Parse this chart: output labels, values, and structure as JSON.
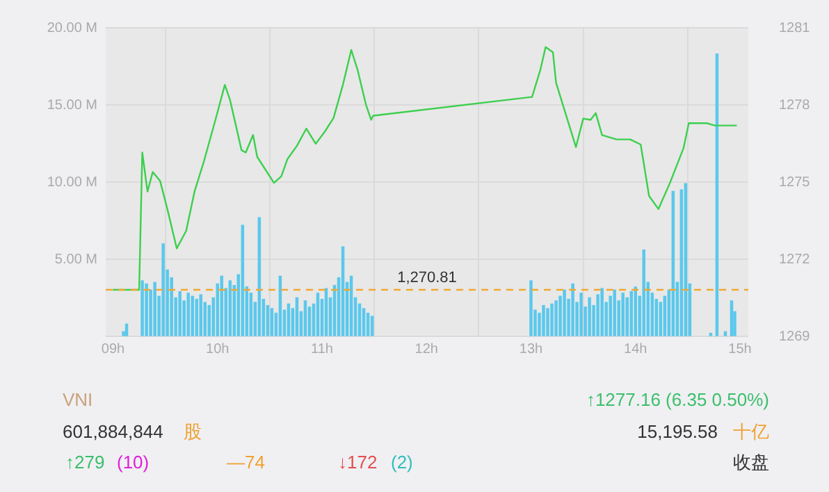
{
  "chart_data": {
    "type": "bar",
    "xlim": [
      8.93,
      15.08
    ],
    "xticks": [
      {
        "value": 9,
        "label": "09h"
      },
      {
        "value": 10,
        "label": "10h"
      },
      {
        "value": 11,
        "label": "11h"
      },
      {
        "value": 12,
        "label": "12h"
      },
      {
        "value": 13,
        "label": "13h"
      },
      {
        "value": 14,
        "label": "14h"
      },
      {
        "value": 15,
        "label": "15h"
      }
    ],
    "ylim": [
      0,
      20
    ],
    "yticks": [
      {
        "value": 0,
        "label": null
      },
      {
        "value": 5,
        "label": "5.00 M"
      },
      {
        "value": 10,
        "label": "10.00 M"
      },
      {
        "value": 15,
        "label": "15.00 M"
      },
      {
        "value": 20,
        "label": "20.00 M"
      }
    ],
    "y2lim": [
      1269,
      1281
    ],
    "y2ticks": [
      1269,
      1272,
      1275,
      1278,
      1281
    ],
    "grid": true,
    "series": [
      {
        "color": "#5bc8ec",
        "x": [
          9.1,
          9.13,
          9.28,
          9.32,
          9.36,
          9.4,
          9.44,
          9.48,
          9.52,
          9.56,
          9.6,
          9.64,
          9.68,
          9.72,
          9.76,
          9.8,
          9.84,
          9.88,
          9.92,
          9.96,
          10.0,
          10.04,
          10.08,
          10.12,
          10.16,
          10.2,
          10.24,
          10.28,
          10.32,
          10.36,
          10.4,
          10.44,
          10.48,
          10.52,
          10.56,
          10.6,
          10.64,
          10.68,
          10.72,
          10.76,
          10.8,
          10.84,
          10.88,
          10.92,
          10.96,
          11.0,
          11.04,
          11.08,
          11.12,
          11.16,
          11.2,
          11.24,
          11.28,
          11.32,
          11.36,
          11.4,
          11.44,
          11.48,
          13.0,
          13.04,
          13.08,
          13.12,
          13.16,
          13.2,
          13.24,
          13.28,
          13.32,
          13.36,
          13.4,
          13.44,
          13.48,
          13.52,
          13.56,
          13.6,
          13.64,
          13.68,
          13.72,
          13.76,
          13.8,
          13.84,
          13.88,
          13.92,
          13.96,
          14.0,
          14.04,
          14.08,
          14.12,
          14.16,
          14.2,
          14.24,
          14.28,
          14.32,
          14.36,
          14.4,
          14.44,
          14.48,
          14.52,
          14.72,
          14.78,
          14.86,
          14.92,
          14.95
        ],
        "values": [
          0.3,
          0.8,
          3.6,
          3.4,
          3.0,
          3.5,
          2.6,
          6.0,
          4.3,
          3.8,
          2.5,
          2.9,
          2.3,
          2.8,
          2.6,
          2.4,
          2.7,
          2.2,
          2.0,
          2.5,
          3.4,
          3.9,
          3.1,
          3.6,
          3.3,
          4.0,
          7.2,
          3.2,
          2.8,
          2.2,
          7.7,
          2.4,
          2.0,
          1.8,
          1.5,
          3.9,
          1.7,
          2.1,
          1.8,
          2.5,
          1.6,
          2.3,
          1.9,
          2.1,
          2.8,
          2.4,
          3.1,
          2.5,
          3.3,
          3.8,
          5.8,
          3.5,
          3.9,
          2.5,
          2.1,
          1.8,
          1.5,
          1.3,
          3.6,
          1.7,
          1.5,
          2.0,
          1.8,
          2.1,
          2.3,
          2.6,
          3.0,
          2.4,
          3.4,
          2.2,
          2.8,
          1.9,
          2.5,
          2.0,
          2.7,
          3.1,
          2.2,
          2.6,
          3.0,
          2.3,
          2.8,
          2.5,
          2.9,
          3.2,
          2.6,
          5.6,
          3.5,
          2.8,
          2.4,
          2.2,
          2.6,
          3.0,
          9.4,
          3.5,
          9.5,
          9.9,
          3.4,
          0.2,
          18.3,
          0.3,
          2.3,
          1.6
        ]
      },
      {
        "type": "line",
        "axis": "y2",
        "color": "#3ccf4e",
        "x": [
          9.0,
          9.25,
          9.28,
          9.33,
          9.38,
          9.45,
          9.52,
          9.61,
          9.7,
          9.78,
          9.87,
          9.98,
          10.07,
          10.12,
          10.23,
          10.27,
          10.34,
          10.38,
          10.54,
          10.61,
          10.67,
          10.76,
          10.85,
          10.94,
          11.03,
          11.11,
          11.2,
          11.28,
          11.34,
          11.42,
          11.47,
          11.49,
          13.01,
          13.09,
          13.14,
          13.21,
          13.24,
          13.43,
          13.5,
          13.57,
          13.62,
          13.68,
          13.82,
          13.95,
          14.05,
          14.13,
          14.22,
          14.33,
          14.46,
          14.51,
          14.68,
          14.76,
          14.97
        ],
        "values": [
          1270.81,
          1270.81,
          1276.15,
          1274.63,
          1275.39,
          1275.05,
          1273.95,
          1272.42,
          1273.1,
          1274.63,
          1275.81,
          1277.42,
          1278.78,
          1278.19,
          1276.24,
          1276.15,
          1276.83,
          1275.98,
          1274.97,
          1275.22,
          1275.9,
          1276.41,
          1277.08,
          1276.49,
          1276.98,
          1277.49,
          1278.78,
          1280.14,
          1279.37,
          1278.02,
          1277.42,
          1277.58,
          1278.31,
          1279.37,
          1280.25,
          1280.05,
          1278.86,
          1276.36,
          1277.47,
          1277.42,
          1277.68,
          1276.83,
          1276.66,
          1276.66,
          1276.46,
          1274.46,
          1273.95,
          1274.97,
          1276.32,
          1277.29,
          1277.29,
          1277.2,
          1277.2
        ]
      }
    ],
    "ref_lines": [
      {
        "axis": "y2",
        "value": 1270.81,
        "label": "1,270.81",
        "color": "#f0a830",
        "line_style": "dashed"
      }
    ],
    "annotations": [
      "VNI",
      "↑1277.16 (6.35 0.50%)",
      "601,884,844",
      "股",
      "15,195.58",
      "十亿",
      "↑279",
      "(10)",
      "—74",
      "↓172",
      "(2)",
      "收盘"
    ]
  }
}
